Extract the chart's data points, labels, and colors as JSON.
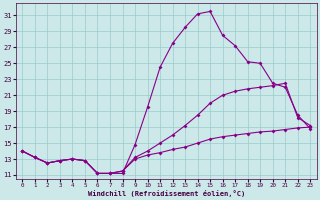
{
  "bg_color": "#cce8e8",
  "line_color": "#880088",
  "grid_color": "#99cccc",
  "xlabel": "Windchill (Refroidissement éolien,°C)",
  "xlim": [
    -0.5,
    23.5
  ],
  "ylim": [
    10.5,
    32.5
  ],
  "yticks": [
    11,
    13,
    15,
    17,
    19,
    21,
    23,
    25,
    27,
    29,
    31
  ],
  "xticks": [
    0,
    1,
    2,
    3,
    4,
    5,
    6,
    7,
    8,
    9,
    10,
    11,
    12,
    13,
    14,
    15,
    16,
    17,
    18,
    19,
    20,
    21,
    22,
    23
  ],
  "curve1_x": [
    0,
    1,
    2,
    3,
    4,
    5,
    6,
    7,
    8,
    9,
    10,
    11,
    12,
    13,
    14,
    15,
    16,
    17,
    18,
    19,
    20,
    21,
    22,
    23
  ],
  "curve1_y": [
    14.0,
    13.2,
    12.5,
    12.8,
    13.0,
    12.8,
    11.2,
    11.2,
    11.2,
    14.8,
    19.5,
    24.5,
    27.5,
    29.5,
    31.2,
    31.5,
    28.5,
    27.2,
    25.2,
    25.0,
    22.5,
    22.0,
    18.5,
    16.8
  ],
  "curve2_x": [
    0,
    1,
    2,
    3,
    4,
    5,
    6,
    7,
    8,
    9,
    10,
    11,
    12,
    13,
    14,
    15,
    16,
    17,
    18,
    19,
    20,
    21,
    22,
    23
  ],
  "curve2_y": [
    14.0,
    13.2,
    12.5,
    12.8,
    13.0,
    12.8,
    11.2,
    11.2,
    11.5,
    13.2,
    14.0,
    15.0,
    16.0,
    17.2,
    18.5,
    20.0,
    21.0,
    21.5,
    21.8,
    22.0,
    22.2,
    22.5,
    18.2,
    17.2
  ],
  "curve3_x": [
    0,
    1,
    2,
    3,
    4,
    5,
    6,
    7,
    8,
    9,
    10,
    11,
    12,
    13,
    14,
    15,
    16,
    17,
    18,
    19,
    20,
    21,
    22,
    23
  ],
  "curve3_y": [
    14.0,
    13.2,
    12.5,
    12.8,
    13.0,
    12.8,
    11.2,
    11.2,
    11.5,
    13.0,
    13.5,
    13.8,
    14.2,
    14.5,
    15.0,
    15.5,
    15.8,
    16.0,
    16.2,
    16.4,
    16.5,
    16.7,
    16.9,
    17.0
  ]
}
